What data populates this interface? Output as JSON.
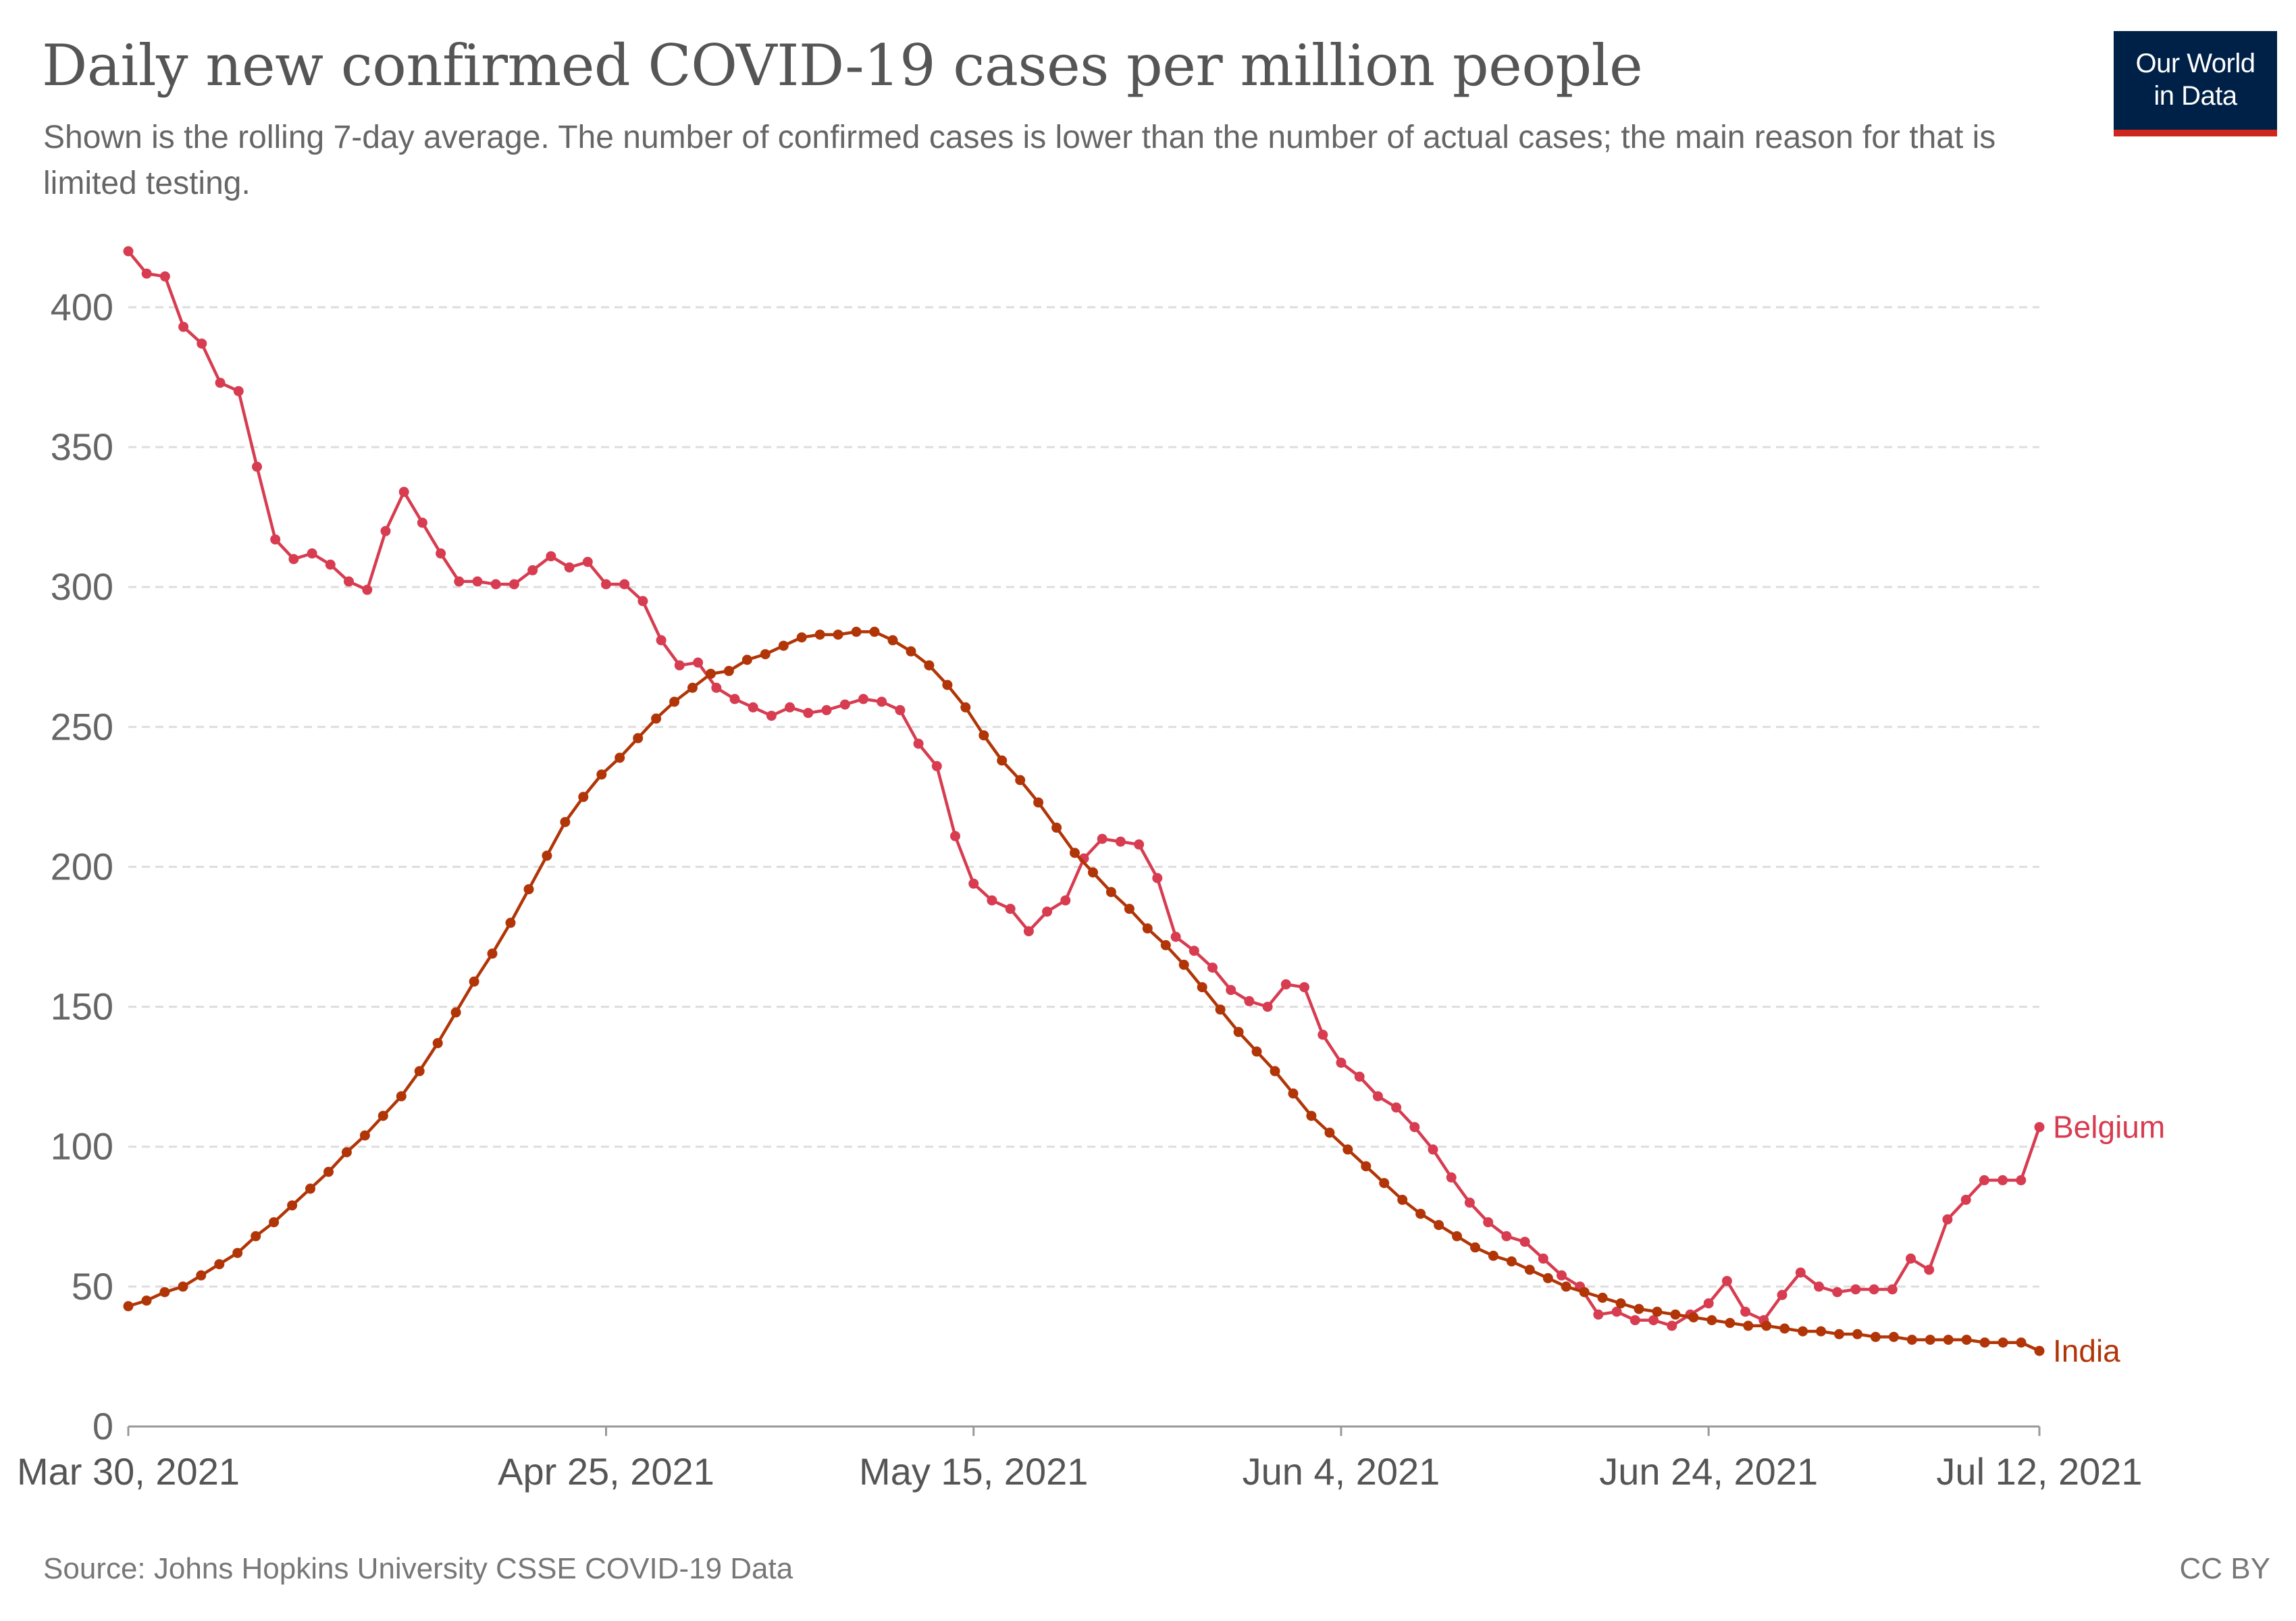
{
  "header": {
    "title": "Daily new confirmed COVID-19 cases per million people",
    "subtitle": "Shown is the rolling 7-day average. The number of confirmed cases is lower than the number of actual cases; the main reason for that is limited testing.",
    "logo_line1": "Our World",
    "logo_line2": "in Data"
  },
  "footer": {
    "source": "Source: Johns Hopkins University CSSE COVID-19 Data",
    "license": "CC BY"
  },
  "colors": {
    "belgium": "#d73c50",
    "india": "#b13507",
    "grid": "#dddddd",
    "axis": "#999999"
  },
  "chart_data": {
    "type": "line",
    "title": "Daily new confirmed COVID-19 cases per million people",
    "xlabel": "",
    "ylabel": "",
    "ylim": [
      0,
      420
    ],
    "yticks": [
      0,
      50,
      100,
      150,
      200,
      250,
      300,
      350,
      400
    ],
    "xlim": [
      "2021-03-30",
      "2021-07-12"
    ],
    "xticks": [
      {
        "date": "2021-03-30",
        "label": "Mar 30, 2021"
      },
      {
        "date": "2021-04-25",
        "label": "Apr 25, 2021"
      },
      {
        "date": "2021-05-15",
        "label": "May 15, 2021"
      },
      {
        "date": "2021-06-04",
        "label": "Jun 4, 2021"
      },
      {
        "date": "2021-06-24",
        "label": "Jun 24, 2021"
      },
      {
        "date": "2021-07-12",
        "label": "Jul 12, 2021"
      }
    ],
    "grid": true,
    "legend": "inline-right",
    "start_date": "2021-03-30",
    "series": [
      {
        "name": "Belgium",
        "values": [
          420,
          412,
          411,
          393,
          387,
          373,
          370,
          343,
          317,
          310,
          312,
          308,
          302,
          299,
          320,
          334,
          323,
          312,
          302,
          302,
          301,
          301,
          306,
          311,
          307,
          309,
          301,
          301,
          295,
          281,
          272,
          273,
          264,
          260,
          257,
          254,
          257,
          255,
          256,
          258,
          260,
          259,
          256,
          244,
          236,
          211,
          194,
          188,
          185,
          177,
          184,
          188,
          203,
          210,
          209,
          208,
          196,
          175,
          170,
          164,
          156,
          152,
          150,
          158,
          157,
          140,
          130,
          125,
          118,
          114,
          107,
          99,
          89,
          80,
          73,
          68,
          66,
          60,
          54,
          50,
          40,
          41,
          38,
          38,
          36,
          40,
          44,
          52,
          41,
          38,
          47,
          55,
          50,
          48,
          49,
          49,
          49,
          60,
          56,
          74,
          81,
          88,
          88,
          88,
          107
        ]
      },
      {
        "name": "India",
        "values": [
          43,
          45,
          48,
          50,
          54,
          58,
          62,
          68,
          73,
          79,
          85,
          91,
          98,
          104,
          111,
          118,
          127,
          137,
          148,
          159,
          169,
          180,
          192,
          204,
          216,
          225,
          233,
          239,
          246,
          253,
          259,
          264,
          269,
          270,
          274,
          276,
          279,
          282,
          283,
          283,
          284,
          284,
          281,
          277,
          272,
          265,
          257,
          247,
          238,
          231,
          223,
          214,
          205,
          198,
          191,
          185,
          178,
          172,
          165,
          157,
          149,
          141,
          134,
          127,
          119,
          111,
          105,
          99,
          93,
          87,
          81,
          76,
          72,
          68,
          64,
          61,
          59,
          56,
          53,
          50,
          48,
          46,
          44,
          42,
          41,
          40,
          39,
          38,
          37,
          36,
          36,
          35,
          34,
          34,
          33,
          33,
          32,
          32,
          31,
          31,
          31,
          31,
          30,
          30,
          30,
          27
        ]
      }
    ]
  }
}
